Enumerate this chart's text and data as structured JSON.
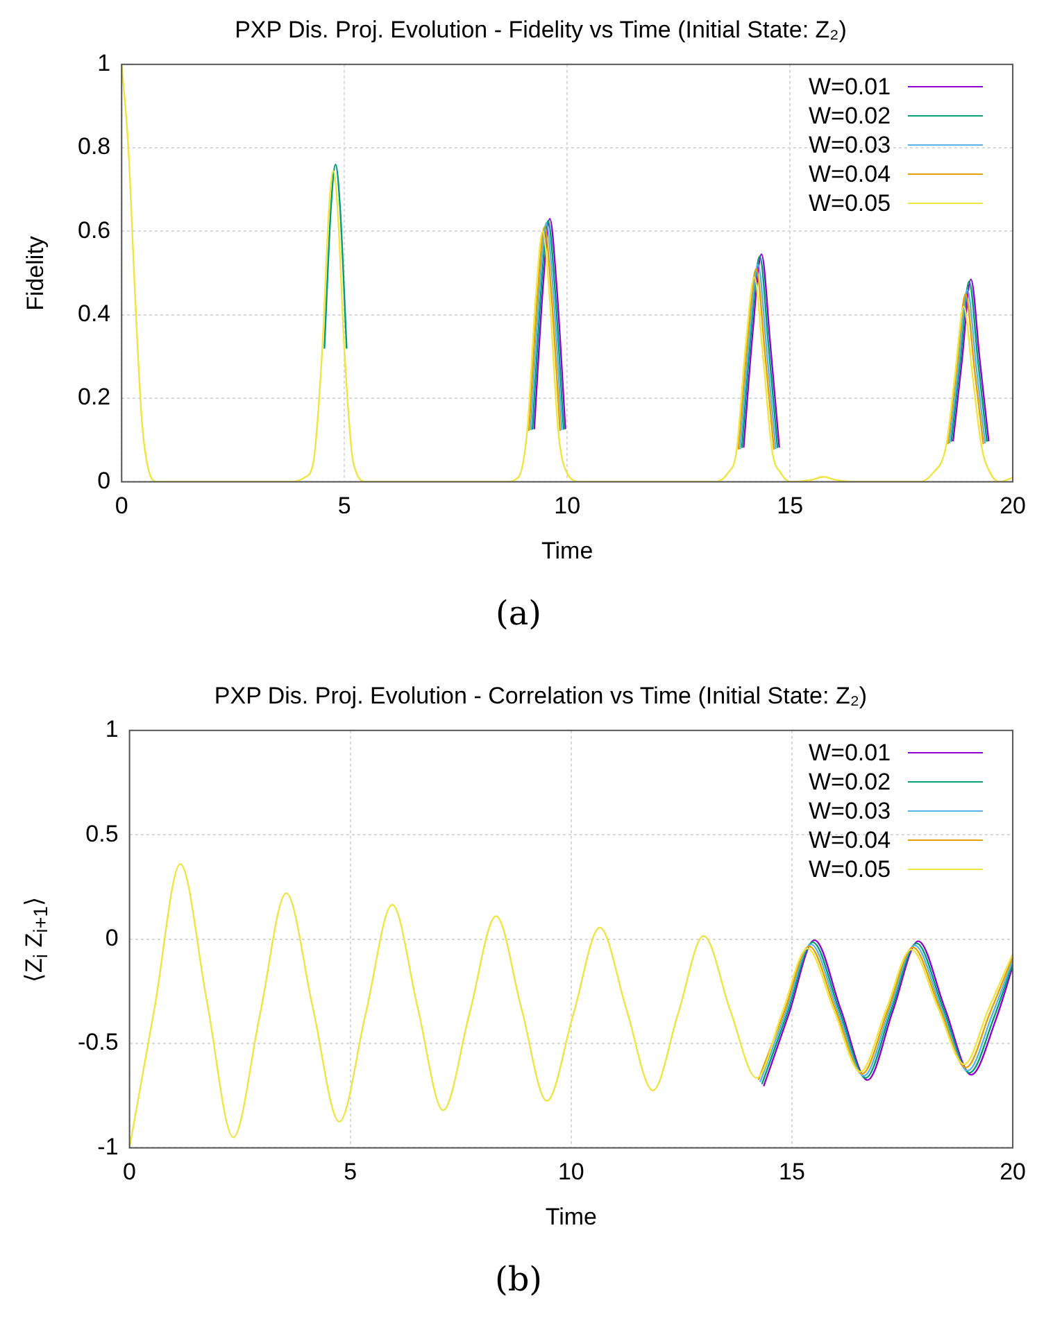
{
  "chart_data": [
    {
      "type": "line",
      "title": "PXP Dis. Proj. Evolution - Fidelity vs Time (Initial State: Z₂)",
      "xlabel": "Time",
      "ylabel": "Fidelity",
      "annotations": [
        "(a)"
      ],
      "grid": true,
      "legend": "top right",
      "xlim": [
        0,
        20
      ],
      "ylim": [
        0,
        1
      ],
      "xticks": [
        0,
        5,
        10,
        15,
        20
      ],
      "yticks": [
        0,
        0.2,
        0.4,
        0.6,
        0.8,
        1
      ],
      "series": [
        {
          "name": "W=0.01",
          "color": "#9400d3",
          "x": [
            9.26,
            9.46,
            9.61,
            9.76,
            9.96,
            12,
            13.96,
            14.16,
            14.36,
            14.56,
            14.76,
            17,
            18.66,
            18.86,
            19.06,
            19.26,
            19.46
          ],
          "values": [
            0.126,
            0.473,
            0.63,
            0.473,
            0.126,
            null,
            0.082,
            0.354,
            0.545,
            0.327,
            0.082,
            null,
            0.097,
            0.291,
            0.485,
            0.291,
            0.097
          ]
        },
        {
          "name": "W=0.02",
          "color": "#009e73",
          "x": [
            4.55,
            4.7,
            4.8,
            4.9,
            5.05,
            7,
            9.22,
            9.42,
            9.57,
            9.72,
            9.92,
            12,
            13.92,
            14.12,
            14.32,
            14.52,
            14.72,
            17,
            18.62,
            18.82,
            19.02,
            19.22,
            19.42
          ],
          "values": [
            0.319,
            0.661,
            0.76,
            0.661,
            0.319,
            null,
            0.125,
            0.469,
            0.625,
            0.469,
            0.125,
            null,
            0.081,
            0.351,
            0.54,
            0.324,
            0.081,
            null,
            0.096,
            0.288,
            0.48,
            0.288,
            0.096
          ]
        },
        {
          "name": "W=0.03",
          "color": "#56b4e9",
          "x": [
            9.18,
            9.38,
            9.53,
            9.68,
            9.88,
            12,
            13.88,
            14.08,
            14.28,
            14.48,
            14.68,
            17,
            18.58,
            18.78,
            18.98,
            19.18,
            19.38
          ],
          "values": [
            0.124,
            0.465,
            0.62,
            0.465,
            0.124,
            null,
            0.078,
            0.338,
            0.52,
            0.312,
            0.078,
            null,
            0.092,
            0.276,
            0.46,
            0.276,
            0.092
          ]
        },
        {
          "name": "W=0.04",
          "color": "#e69f00",
          "x": [
            9.14,
            9.34,
            9.49,
            9.64,
            9.84,
            12,
            13.84,
            14.04,
            14.24,
            14.44,
            14.64,
            17,
            18.54,
            18.74,
            18.94,
            19.14,
            19.34
          ],
          "values": [
            0.122,
            0.458,
            0.61,
            0.458,
            0.122,
            null,
            0.077,
            0.332,
            0.51,
            0.306,
            0.077,
            null,
            0.09,
            0.27,
            0.45,
            0.27,
            0.09
          ]
        },
        {
          "name": "W=0.05",
          "color": "#f0e442",
          "x": [
            0,
            0.15,
            0.3,
            0.45,
            0.6,
            0.8,
            3.8,
            4.1,
            4.3,
            4.5,
            4.65,
            4.75,
            4.85,
            5.0,
            5.2,
            5.5,
            8.6,
            8.9,
            9.1,
            9.3,
            9.45,
            9.6,
            9.8,
            10.0,
            10.3,
            13.3,
            13.6,
            13.8,
            14.0,
            14.2,
            14.4,
            14.6,
            14.8,
            15.0,
            15.5,
            15.75,
            16.0,
            16.5,
            17.9,
            18.2,
            18.5,
            18.7,
            18.9,
            19.1,
            19.3,
            19.5,
            19.7,
            20
          ],
          "values": [
            1,
            0.8,
            0.45,
            0.15,
            0.03,
            0,
            0,
            0.01,
            0.045,
            0.313,
            0.648,
            0.745,
            0.648,
            0.313,
            0.045,
            0,
            0,
            0.01,
            0.12,
            0.45,
            0.6,
            0.45,
            0.12,
            0.02,
            0,
            0,
            0.02,
            0.074,
            0.319,
            0.49,
            0.294,
            0.074,
            0.02,
            0,
            0.005,
            0.012,
            0.005,
            0,
            0,
            0.02,
            0.084,
            0.252,
            0.42,
            0.252,
            0.084,
            0.02,
            0,
            0.01
          ]
        }
      ]
    },
    {
      "type": "line",
      "title": "PXP Dis. Proj. Evolution - Correlation vs Time (Initial State: Z₂)",
      "xlabel": "Time",
      "ylabel": "⟨Z$_{i}$ Z$_{i+1}$⟩",
      "annotations": [
        "(b)"
      ],
      "grid": true,
      "legend": "top right",
      "xlim": [
        0,
        20
      ],
      "ylim": [
        -1,
        1
      ],
      "xticks": [
        0,
        5,
        10,
        15,
        20
      ],
      "yticks": [
        -1,
        -0.5,
        0,
        0.5,
        1
      ],
      "series": [
        {
          "name": "W=0.01",
          "color": "#9400d3",
          "x": [
            14.36,
            14.935,
            15.51,
            16.11,
            16.71,
            17.285,
            17.86,
            18.46,
            19.06,
            19.61,
            20
          ],
          "values": [
            -0.705,
            -0.355,
            -0.005,
            -0.34,
            -0.675,
            -0.343,
            -0.01,
            -0.33,
            -0.65,
            -0.39,
            -0.13
          ]
        },
        {
          "name": "W=0.02",
          "color": "#009e73",
          "x": [
            14.32,
            14.895,
            15.47,
            16.07,
            16.67,
            17.245,
            17.82,
            18.42,
            19.02,
            19.57,
            20
          ],
          "values": [
            -0.695,
            -0.355,
            -0.015,
            -0.34,
            -0.665,
            -0.343,
            -0.02,
            -0.33,
            -0.64,
            -0.378,
            -0.115
          ]
        },
        {
          "name": "W=0.03",
          "color": "#56b4e9",
          "x": [
            14.28,
            14.855,
            15.43,
            16.03,
            16.63,
            17.205,
            17.78,
            18.38,
            18.98,
            19.53,
            20
          ],
          "values": [
            -0.685,
            -0.355,
            -0.025,
            -0.34,
            -0.655,
            -0.343,
            -0.03,
            -0.33,
            -0.63,
            -0.365,
            -0.1
          ]
        },
        {
          "name": "W=0.04",
          "color": "#e69f00",
          "x": [
            14.24,
            14.815,
            15.39,
            15.99,
            16.59,
            17.165,
            17.74,
            18.34,
            18.94,
            19.49,
            20
          ],
          "values": [
            -0.675,
            -0.355,
            -0.035,
            -0.34,
            -0.645,
            -0.343,
            -0.04,
            -0.328,
            -0.615,
            -0.35,
            -0.085
          ]
        },
        {
          "name": "W=0.05",
          "color": "#f0e442",
          "x": [
            0,
            0.575,
            1.15,
            1.75,
            2.35,
            2.95,
            3.55,
            4.15,
            4.75,
            5.35,
            5.95,
            6.525,
            7.1,
            7.7,
            8.3,
            8.875,
            9.45,
            10.05,
            10.65,
            11.25,
            11.85,
            12.425,
            13.0,
            13.6,
            14.2,
            14.775,
            15.35,
            15.95,
            16.55,
            17.125,
            17.7,
            18.3,
            18.9,
            19.45,
            20
          ],
          "values": [
            -1,
            -0.32,
            0.36,
            -0.295,
            -0.95,
            -0.365,
            0.22,
            -0.328,
            -0.875,
            -0.355,
            0.165,
            -0.328,
            -0.82,
            -0.355,
            0.11,
            -0.333,
            -0.775,
            -0.36,
            0.055,
            -0.335,
            -0.725,
            -0.355,
            0.015,
            -0.34,
            -0.665,
            -0.355,
            -0.045,
            -0.34,
            -0.635,
            -0.343,
            -0.05,
            -0.325,
            -0.6,
            -0.335,
            -0.07
          ]
        }
      ]
    }
  ]
}
